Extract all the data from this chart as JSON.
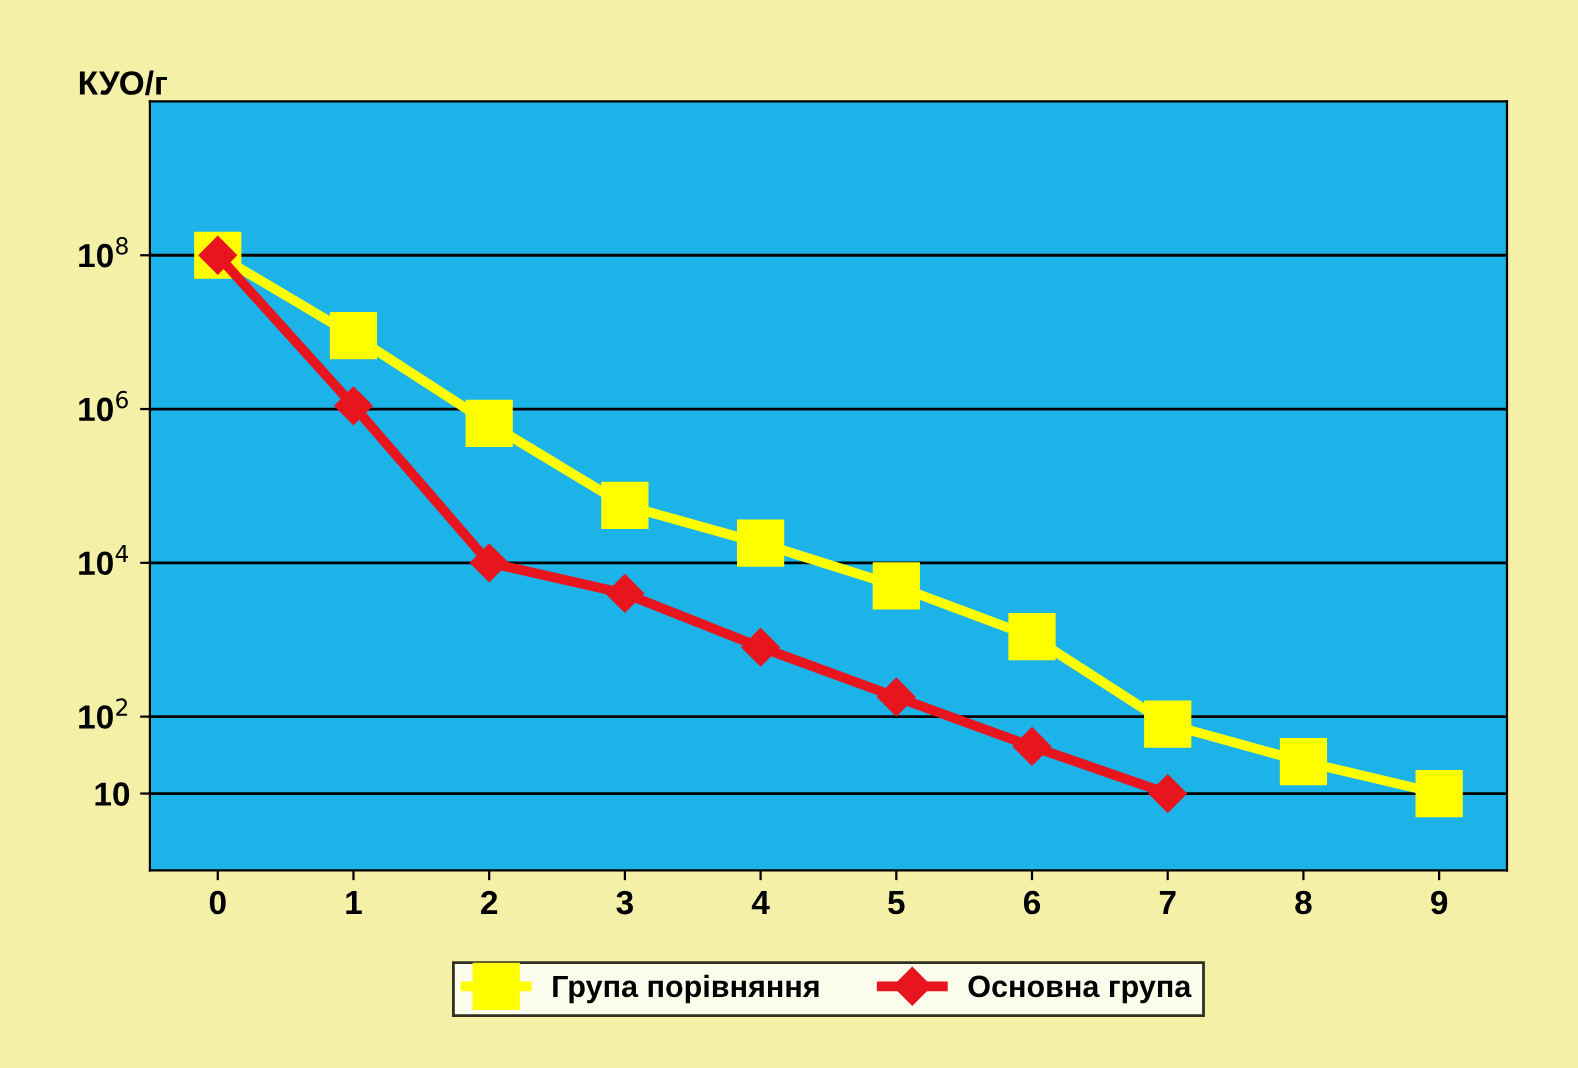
{
  "chart_data": {
    "type": "line",
    "ylabel": "КУО/г",
    "categories": [
      "0",
      "1",
      "2",
      "3",
      "4",
      "5",
      "6",
      "7",
      "8",
      "9"
    ],
    "series": [
      {
        "name": "Група порівняння",
        "color": "#ffff00",
        "marker": "square",
        "values": [
          100000000,
          9000000,
          650000,
          56000,
          18000,
          5000,
          1100,
          80,
          26,
          10
        ]
      },
      {
        "name": "Основна група",
        "color": "#e8141e",
        "marker": "diamond",
        "values": [
          100000000,
          1100000,
          10000,
          4000,
          800,
          180,
          41,
          10,
          null,
          null
        ]
      }
    ],
    "log": "y",
    "ylim": [
      1,
      10000000000
    ],
    "yticks": [
      10,
      {
        "value": 100,
        "label": "10$^{2}$"
      },
      {
        "value": 10000,
        "label": "10$^{4}$"
      },
      {
        "value": 1000000,
        "label": "10$^{6}$"
      },
      {
        "value": 100000000,
        "label": "10$^{8}$"
      }
    ],
    "grid": "y",
    "legend": "bottom",
    "line_style": "solid"
  }
}
